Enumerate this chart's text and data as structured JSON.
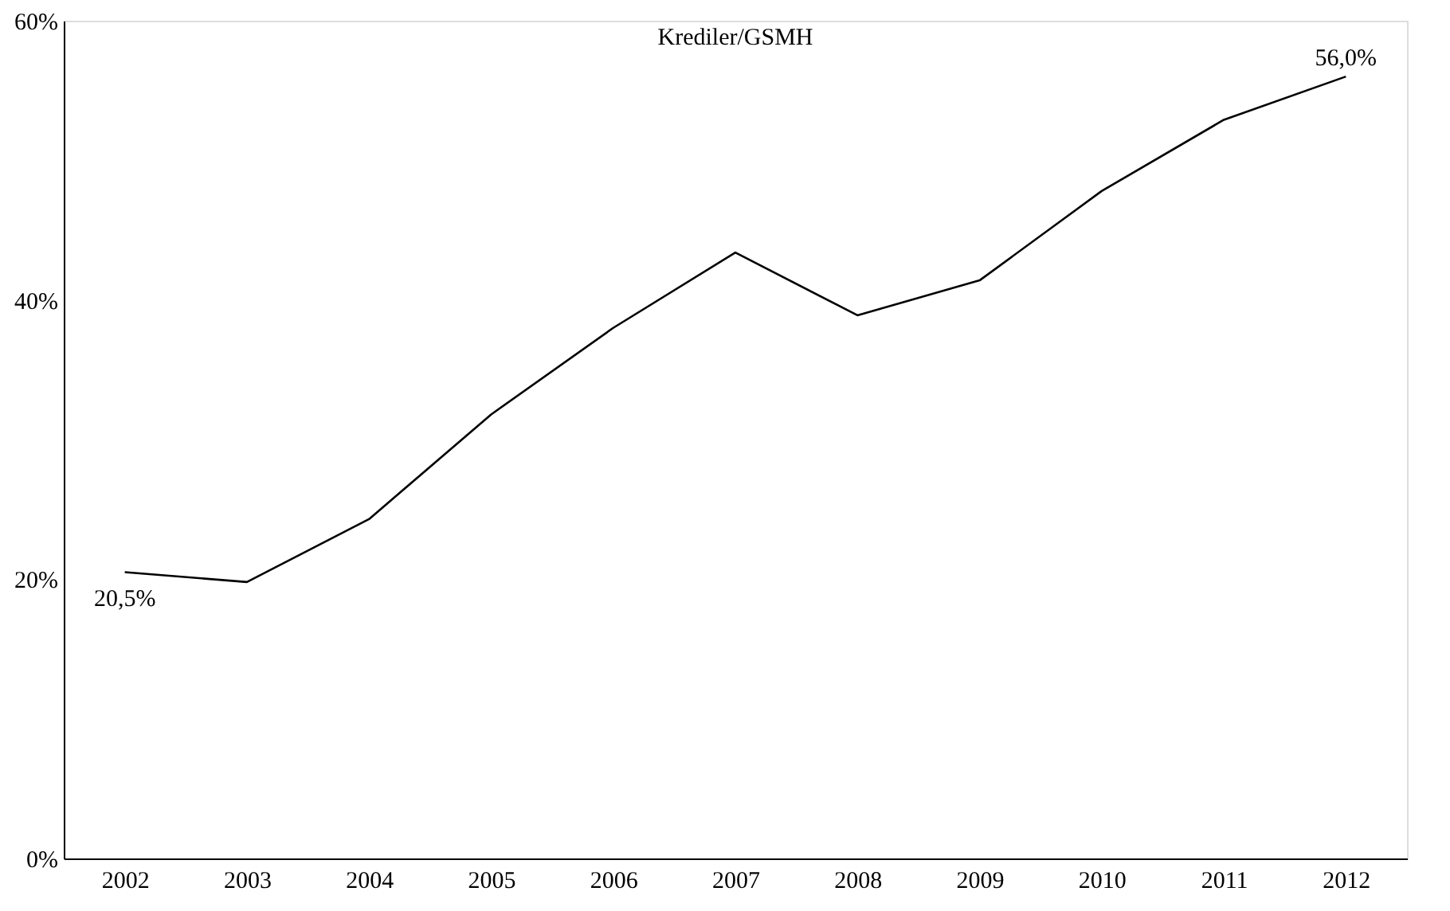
{
  "chart_data": {
    "type": "line",
    "title": "Krediler/GSMH",
    "categories": [
      "2002",
      "2003",
      "2004",
      "2005",
      "2006",
      "2007",
      "2008",
      "2009",
      "2010",
      "2011",
      "2012"
    ],
    "series": [
      {
        "color": "#000000",
        "values": [
          20.5,
          19.8,
          24.3,
          31.8,
          38.0,
          43.4,
          38.9,
          41.4,
          47.8,
          52.9,
          56.0
        ],
        "value_labels": [
          "20,5%",
          null,
          null,
          null,
          null,
          null,
          null,
          null,
          null,
          null,
          "56,0%"
        ]
      }
    ],
    "ylim": [
      0,
      60
    ],
    "yticks": [
      {
        "value": 0,
        "label": "0%"
      },
      {
        "value": 20,
        "label": "20%"
      },
      {
        "value": 40,
        "label": "40%"
      },
      {
        "value": 60,
        "label": "60%"
      }
    ],
    "grid": false,
    "marker": "none",
    "line_style": "solid"
  }
}
